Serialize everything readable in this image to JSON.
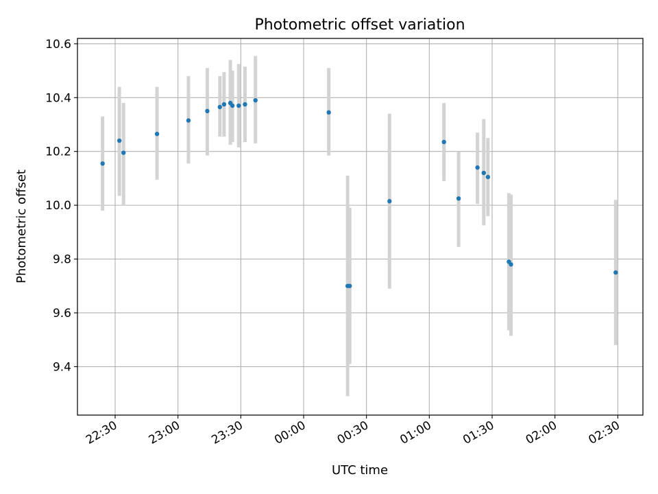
{
  "chart_data": {
    "type": "scatter",
    "title": "Photometric offset variation",
    "xlabel": "UTC time",
    "ylabel": "Photometric offset",
    "x_axis_kind": "time",
    "x_range": [
      "22:12",
      "02:42"
    ],
    "ylim": [
      9.22,
      10.62
    ],
    "grid": true,
    "x_ticks": [
      "22:30",
      "23:00",
      "23:30",
      "00:00",
      "00:30",
      "01:00",
      "01:30",
      "02:00",
      "02:30"
    ],
    "y_ticks": [
      "9.4",
      "9.6",
      "9.8",
      "10.0",
      "10.2",
      "10.4",
      "10.6"
    ],
    "y_tick_values": [
      9.4,
      9.6,
      9.8,
      10.0,
      10.2,
      10.4,
      10.6
    ],
    "colors": {
      "point": "#1f77b4",
      "errorbar": "#d3d3d3",
      "grid": "#b0b0b0"
    },
    "points": [
      {
        "time": "22:24",
        "offset": 10.155,
        "err_low": 9.98,
        "err_high": 10.33
      },
      {
        "time": "22:32",
        "offset": 10.24,
        "err_low": 10.035,
        "err_high": 10.44
      },
      {
        "time": "22:34",
        "offset": 10.195,
        "err_low": 10.0,
        "err_high": 10.38
      },
      {
        "time": "22:50",
        "offset": 10.265,
        "err_low": 10.095,
        "err_high": 10.44
      },
      {
        "time": "23:05",
        "offset": 10.315,
        "err_low": 10.155,
        "err_high": 10.48
      },
      {
        "time": "23:14",
        "offset": 10.35,
        "err_low": 10.185,
        "err_high": 10.51
      },
      {
        "time": "23:20",
        "offset": 10.365,
        "err_low": 10.255,
        "err_high": 10.48
      },
      {
        "time": "23:22",
        "offset": 10.375,
        "err_low": 10.255,
        "err_high": 10.495
      },
      {
        "time": "23:25",
        "offset": 10.38,
        "err_low": 10.225,
        "err_high": 10.54
      },
      {
        "time": "23:26",
        "offset": 10.37,
        "err_low": 10.235,
        "err_high": 10.5
      },
      {
        "time": "23:29",
        "offset": 10.37,
        "err_low": 10.215,
        "err_high": 10.525
      },
      {
        "time": "23:32",
        "offset": 10.375,
        "err_low": 10.235,
        "err_high": 10.515
      },
      {
        "time": "23:37",
        "offset": 10.39,
        "err_low": 10.23,
        "err_high": 10.555
      },
      {
        "time": "00:12",
        "offset": 10.345,
        "err_low": 10.185,
        "err_high": 10.51
      },
      {
        "time": "00:21",
        "offset": 9.7,
        "err_low": 9.29,
        "err_high": 10.11
      },
      {
        "time": "00:22",
        "offset": 9.7,
        "err_low": 9.41,
        "err_high": 9.99
      },
      {
        "time": "00:41",
        "offset": 10.015,
        "err_low": 9.69,
        "err_high": 10.34
      },
      {
        "time": "01:07",
        "offset": 10.235,
        "err_low": 10.09,
        "err_high": 10.38
      },
      {
        "time": "01:14",
        "offset": 10.025,
        "err_low": 9.845,
        "err_high": 10.2
      },
      {
        "time": "01:23",
        "offset": 10.14,
        "err_low": 10.005,
        "err_high": 10.27
      },
      {
        "time": "01:26",
        "offset": 10.12,
        "err_low": 9.925,
        "err_high": 10.32
      },
      {
        "time": "01:28",
        "offset": 10.105,
        "err_low": 9.96,
        "err_high": 10.25
      },
      {
        "time": "01:38",
        "offset": 9.79,
        "err_low": 9.535,
        "err_high": 10.045
      },
      {
        "time": "01:39",
        "offset": 9.78,
        "err_low": 9.515,
        "err_high": 10.04
      },
      {
        "time": "02:29",
        "offset": 9.75,
        "err_low": 9.48,
        "err_high": 10.02
      }
    ]
  }
}
